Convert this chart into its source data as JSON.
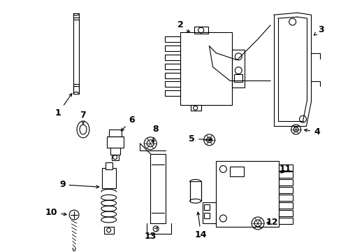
{
  "background_color": "#ffffff",
  "line_color": "#000000",
  "label_color": "#000000",
  "figure_width": 4.89,
  "figure_height": 3.6,
  "dpi": 100
}
